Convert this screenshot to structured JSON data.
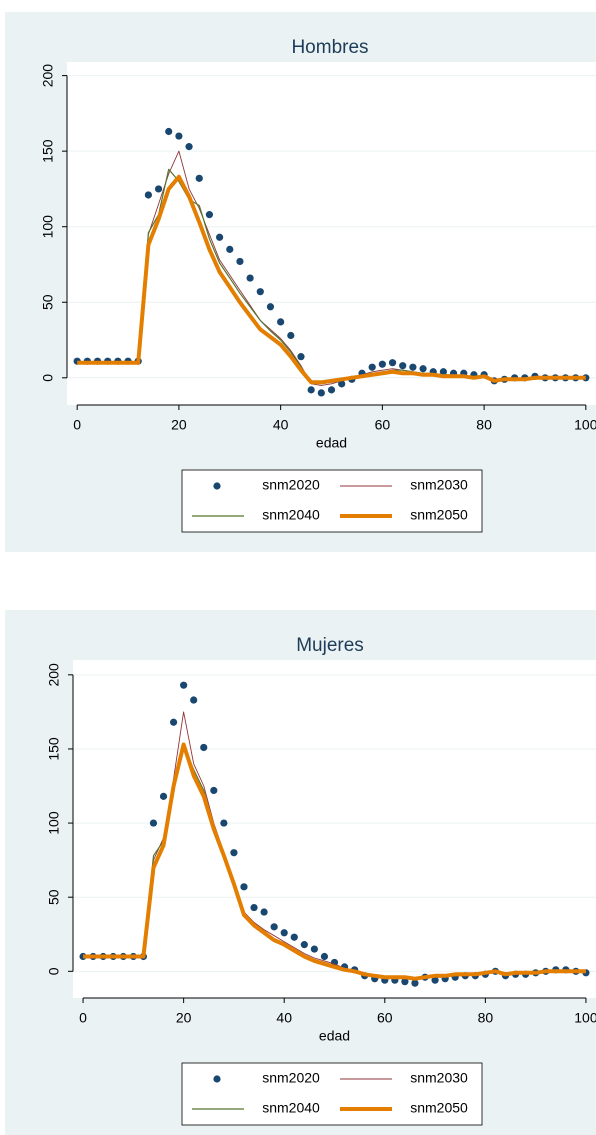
{
  "chart_data": [
    {
      "type": "line",
      "title": "Hombres",
      "x_label": "edad",
      "x": [
        0,
        2,
        4,
        6,
        8,
        10,
        12,
        14,
        16,
        18,
        20,
        22,
        24,
        26,
        28,
        30,
        32,
        34,
        36,
        38,
        40,
        42,
        44,
        46,
        48,
        50,
        52,
        54,
        56,
        58,
        60,
        62,
        64,
        66,
        68,
        70,
        72,
        74,
        76,
        78,
        80,
        82,
        84,
        86,
        88,
        90,
        92,
        94,
        96,
        98,
        100
      ],
      "xlim": [
        -2,
        102
      ],
      "xticks": [
        0,
        20,
        40,
        60,
        80,
        100
      ],
      "ylim": [
        -18,
        209
      ],
      "yticks": [
        0,
        50,
        100,
        150,
        200
      ],
      "grid": true,
      "legend_position": "bottom",
      "series": [
        {
          "name": "snm2020",
          "color": "#1a476f",
          "mode": "markers",
          "values": [
            11,
            11,
            11,
            11,
            11,
            11,
            11,
            121,
            125,
            163,
            160,
            153,
            132,
            108,
            93,
            85,
            77,
            66,
            57,
            47,
            37,
            28,
            14,
            -8,
            -10,
            -8,
            -4,
            -1,
            3,
            7,
            9,
            10,
            8,
            7,
            6,
            4,
            4,
            3,
            3,
            2,
            2,
            -2,
            -1,
            0,
            0,
            1,
            0,
            0,
            0,
            0,
            0
          ]
        },
        {
          "name": "snm2030",
          "color": "#90353b",
          "mode": "lines",
          "values": [
            10,
            10,
            10,
            10,
            10,
            10,
            10,
            95,
            115,
            135,
            150,
            125,
            112,
            95,
            78,
            68,
            58,
            48,
            38,
            32,
            26,
            18,
            8,
            -4,
            -5,
            -4,
            -2,
            0,
            2,
            4,
            5,
            6,
            5,
            4,
            3,
            3,
            2,
            2,
            1,
            1,
            1,
            -2,
            -1,
            -1,
            0,
            0,
            0,
            0,
            0,
            0,
            0
          ]
        },
        {
          "name": "snm2040",
          "color": "#55752f",
          "mode": "lines",
          "values": [
            10,
            10,
            10,
            10,
            10,
            10,
            10,
            96,
            108,
            138,
            130,
            118,
            114,
            92,
            76,
            66,
            56,
            47,
            38,
            31,
            25,
            17,
            7,
            -3,
            -4,
            -3,
            -2,
            0,
            2,
            3,
            4,
            5,
            5,
            4,
            3,
            3,
            2,
            2,
            1,
            1,
            1,
            -2,
            -1,
            -1,
            0,
            0,
            0,
            0,
            0,
            0,
            0
          ]
        },
        {
          "name": "snm2050",
          "color": "#e37e00",
          "mode": "lines",
          "values": [
            10,
            10,
            10,
            10,
            10,
            10,
            10,
            88,
            105,
            125,
            133,
            120,
            103,
            85,
            70,
            60,
            50,
            41,
            32,
            27,
            22,
            14,
            5,
            -3,
            -3,
            -2,
            -1,
            0,
            1,
            2,
            3,
            4,
            3,
            3,
            2,
            2,
            1,
            1,
            1,
            0,
            1,
            -2,
            -1,
            -1,
            -1,
            0,
            0,
            0,
            0,
            0,
            0
          ]
        }
      ]
    },
    {
      "type": "line",
      "title": "Mujeres",
      "x_label": "edad",
      "x": [
        0,
        2,
        4,
        6,
        8,
        10,
        12,
        14,
        16,
        18,
        20,
        22,
        24,
        26,
        28,
        30,
        32,
        34,
        36,
        38,
        40,
        42,
        44,
        46,
        48,
        50,
        52,
        54,
        56,
        58,
        60,
        62,
        64,
        66,
        68,
        70,
        72,
        74,
        76,
        78,
        80,
        82,
        84,
        86,
        88,
        90,
        92,
        94,
        96,
        98,
        100
      ],
      "xlim": [
        -2,
        102
      ],
      "xticks": [
        0,
        20,
        40,
        60,
        80,
        100
      ],
      "ylim": [
        -18,
        210
      ],
      "yticks": [
        0,
        50,
        100,
        150,
        200
      ],
      "grid": true,
      "legend_position": "bottom",
      "series": [
        {
          "name": "snm2020",
          "color": "#1a476f",
          "mode": "markers",
          "values": [
            10,
            10,
            10,
            10,
            10,
            10,
            10,
            100,
            118,
            168,
            193,
            183,
            151,
            122,
            100,
            80,
            57,
            43,
            40,
            30,
            26,
            23,
            18,
            15,
            10,
            6,
            3,
            1,
            -3,
            -5,
            -6,
            -6,
            -7,
            -8,
            -4,
            -6,
            -5,
            -4,
            -3,
            -3,
            -2,
            0,
            -3,
            -2,
            -2,
            -1,
            0,
            1,
            1,
            0,
            -1
          ]
        },
        {
          "name": "snm2030",
          "color": "#90353b",
          "mode": "lines",
          "values": [
            10,
            10,
            10,
            10,
            10,
            10,
            10,
            75,
            90,
            130,
            175,
            140,
            125,
            100,
            80,
            60,
            40,
            33,
            28,
            24,
            20,
            16,
            12,
            9,
            7,
            5,
            2,
            1,
            -2,
            -3,
            -4,
            -5,
            -5,
            -6,
            -4,
            -4,
            -4,
            -3,
            -3,
            -2,
            -1,
            1,
            -2,
            -1,
            -1,
            -1,
            0,
            0,
            1,
            0,
            0
          ]
        },
        {
          "name": "snm2040",
          "color": "#55752f",
          "mode": "lines",
          "values": [
            10,
            10,
            10,
            10,
            10,
            10,
            10,
            78,
            88,
            128,
            153,
            136,
            122,
            98,
            79,
            60,
            39,
            32,
            27,
            22,
            19,
            15,
            11,
            8,
            6,
            4,
            1,
            0,
            -2,
            -3,
            -4,
            -4,
            -5,
            -5,
            -4,
            -3,
            -3,
            -3,
            -2,
            -2,
            -1,
            1,
            -2,
            -1,
            -1,
            -1,
            0,
            0,
            0,
            0,
            0
          ]
        },
        {
          "name": "snm2050",
          "color": "#e37e00",
          "mode": "lines",
          "values": [
            10,
            10,
            10,
            10,
            10,
            10,
            10,
            70,
            85,
            125,
            153,
            132,
            118,
            96,
            78,
            59,
            38,
            31,
            26,
            21,
            18,
            14,
            10,
            7,
            5,
            3,
            1,
            0,
            -2,
            -3,
            -4,
            -4,
            -4,
            -5,
            -4,
            -3,
            -3,
            -2,
            -2,
            -2,
            -1,
            0,
            -2,
            -1,
            -1,
            -1,
            0,
            0,
            0,
            0,
            0
          ]
        }
      ]
    }
  ]
}
